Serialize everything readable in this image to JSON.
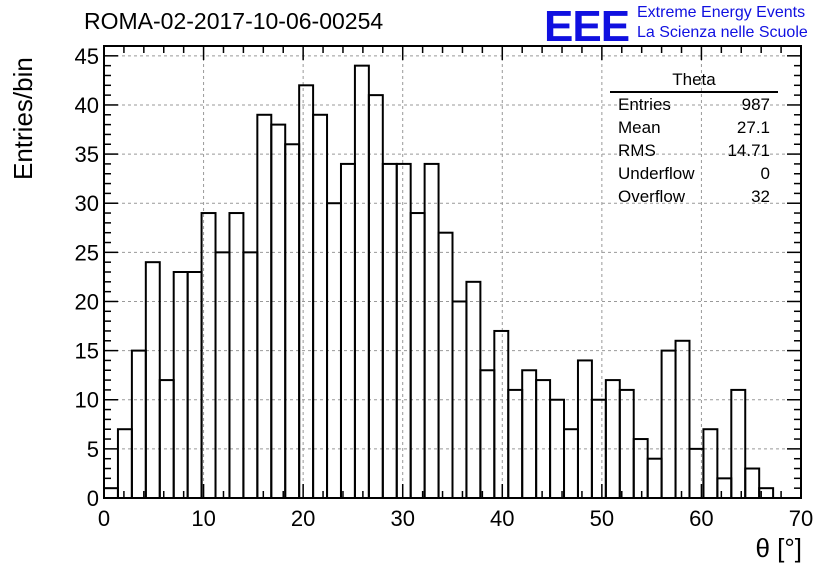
{
  "header": {
    "title": "ROMA-02-2017-10-06-00254",
    "logo_text": "EEE",
    "logo_line1": "Extreme Energy Events",
    "logo_line2": "La Scienza nelle Scuole",
    "logo_color": "#1010e0"
  },
  "stats_box": {
    "name": "Theta",
    "rows": [
      {
        "label": "Entries",
        "value": "987"
      },
      {
        "label": "Mean",
        "value": "27.1"
      },
      {
        "label": "RMS",
        "value": "14.71"
      },
      {
        "label": "Underflow",
        "value": "0"
      },
      {
        "label": "Overflow",
        "value": "32"
      }
    ]
  },
  "chart_data": {
    "type": "bar",
    "style": "step-histogram",
    "xlabel": "θ [°]",
    "ylabel": "Entries/bin",
    "xlim": [
      0,
      70
    ],
    "ylim": [
      0,
      46
    ],
    "x_ticks": [
      0,
      10,
      20,
      30,
      40,
      50,
      60,
      70
    ],
    "y_ticks": [
      0,
      5,
      10,
      15,
      20,
      25,
      30,
      35,
      40,
      45
    ],
    "grid": true,
    "bin_width": 1.4,
    "bin_start": 0,
    "values": [
      1,
      7,
      15,
      24,
      12,
      23,
      23,
      29,
      25,
      29,
      25,
      39,
      38,
      36,
      42,
      39,
      30,
      34,
      44,
      41,
      34,
      34,
      29,
      34,
      27,
      20,
      22,
      13,
      17,
      11,
      13,
      12,
      10,
      7,
      14,
      10,
      12,
      11,
      6,
      4,
      15,
      16,
      5,
      7,
      2,
      11,
      3,
      1,
      0,
      0
    ]
  }
}
